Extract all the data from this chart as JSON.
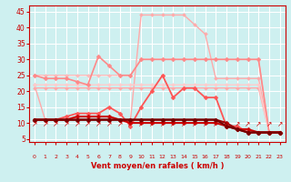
{
  "bg_color": "#cef0f0",
  "grid_color": "#ffffff",
  "xlabel": "Vent moyen/en rafales ( km/h )",
  "xlabel_color": "#cc0000",
  "tick_color": "#cc0000",
  "x_ticks": [
    0,
    1,
    2,
    3,
    4,
    5,
    6,
    7,
    8,
    9,
    10,
    11,
    12,
    13,
    14,
    15,
    16,
    17,
    18,
    19,
    20,
    21,
    22,
    23
  ],
  "ylim": [
    4,
    47
  ],
  "yticks": [
    5,
    10,
    15,
    20,
    25,
    30,
    35,
    40,
    45
  ],
  "lines": [
    {
      "color": "#ffaaaa",
      "linewidth": 1.0,
      "marker": "D",
      "markersize": 2.0,
      "y": [
        22,
        11,
        11,
        11,
        11,
        11,
        11,
        11,
        11,
        11,
        44,
        44,
        44,
        44,
        44,
        41,
        38,
        24,
        24,
        24,
        24,
        24,
        7,
        7
      ]
    },
    {
      "color": "#ffaaaa",
      "linewidth": 1.0,
      "marker": "D",
      "markersize": 2.0,
      "y": [
        21,
        21,
        21,
        21,
        21,
        21,
        21,
        21,
        21,
        21,
        21,
        21,
        21,
        21,
        21,
        21,
        21,
        21,
        21,
        21,
        21,
        21,
        7,
        7
      ]
    },
    {
      "color": "#ffbbbb",
      "linewidth": 1.0,
      "marker": "D",
      "markersize": 2.0,
      "y": [
        25,
        25,
        25,
        25,
        25,
        25,
        25,
        25,
        25,
        25,
        30,
        30,
        30,
        30,
        30,
        30,
        30,
        30,
        30,
        30,
        30,
        30,
        7,
        7
      ]
    },
    {
      "color": "#ffcccc",
      "linewidth": 1.0,
      "marker": "D",
      "markersize": 2.0,
      "y": [
        22,
        22,
        22,
        22,
        22,
        22,
        22,
        22,
        22,
        22,
        22,
        22,
        22,
        22,
        22,
        22,
        22,
        22,
        22,
        22,
        22,
        22,
        7,
        7
      ]
    },
    {
      "color": "#ff8888",
      "linewidth": 1.2,
      "marker": "D",
      "markersize": 2.5,
      "y": [
        25,
        24,
        24,
        24,
        23,
        22,
        31,
        28,
        25,
        25,
        30,
        30,
        30,
        30,
        30,
        30,
        30,
        30,
        30,
        30,
        30,
        30,
        7,
        7
      ]
    },
    {
      "color": "#ff5555",
      "linewidth": 1.3,
      "marker": "D",
      "markersize": 2.5,
      "y": [
        11,
        11,
        11,
        12,
        13,
        13,
        13,
        15,
        13,
        9,
        15,
        20,
        25,
        18,
        21,
        21,
        18,
        18,
        9,
        9,
        7,
        7,
        7,
        7
      ]
    },
    {
      "color": "#cc0000",
      "linewidth": 1.5,
      "marker": "D",
      "markersize": 2.5,
      "y": [
        11,
        11,
        11,
        11,
        12,
        12,
        12,
        12,
        11,
        10,
        10,
        10,
        10,
        10,
        10,
        10,
        10,
        10,
        9,
        8,
        8,
        7,
        7,
        7
      ]
    },
    {
      "color": "#990000",
      "linewidth": 1.5,
      "marker": "D",
      "markersize": 2.5,
      "y": [
        11,
        11,
        11,
        11,
        11,
        11,
        11,
        11,
        11,
        11,
        11,
        11,
        11,
        11,
        11,
        11,
        11,
        11,
        10,
        8,
        7,
        7,
        7,
        7
      ]
    },
    {
      "color": "#770000",
      "linewidth": 1.5,
      "marker": "D",
      "markersize": 2.5,
      "y": [
        11,
        11,
        11,
        11,
        11,
        11,
        11,
        11,
        11,
        11,
        11,
        11,
        11,
        11,
        11,
        11,
        11,
        11,
        9,
        8,
        7,
        7,
        7,
        7
      ]
    }
  ],
  "arrow_char": "↗",
  "arrow_color": "#cc0000",
  "arrow_fontsize": 5.5
}
